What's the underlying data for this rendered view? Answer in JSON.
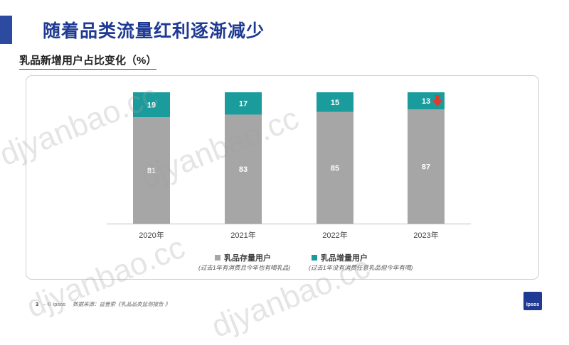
{
  "header": {
    "title": "随着品类流量红利逐渐减少"
  },
  "section": {
    "subtitle": "乳品新增用户占比变化（%）"
  },
  "chart_data": {
    "type": "bar",
    "stacked": true,
    "categories": [
      "2020年",
      "2021年",
      "2022年",
      "2023年"
    ],
    "series": [
      {
        "name": "乳品存量用户",
        "values": [
          81,
          83,
          85,
          87
        ],
        "color": "#A6A6A6"
      },
      {
        "name": "乳品增量用户",
        "values": [
          19,
          17,
          15,
          13
        ],
        "color": "#1A9C9C"
      }
    ],
    "ylim": [
      0,
      100
    ],
    "grid": false,
    "legend_position": "bottom",
    "annotation": {
      "category": "2023年",
      "icon": "down-arrow-icon",
      "color": "#E03A2E"
    }
  },
  "legend": {
    "items": [
      {
        "label": "乳品存量用户",
        "note": "(过去1年有消费且今年也有喝乳品)",
        "color": "#A6A6A6"
      },
      {
        "label": "乳品增量用户",
        "note": "(过去1年没有消费任意乳品但今年有喝)",
        "color": "#1A9C9C"
      }
    ]
  },
  "footer": {
    "page_number": "3",
    "separator": "–",
    "copyright": "© Ipsos",
    "source": "数据来源：益普索《乳品品类监测报告 》"
  },
  "logo": {
    "text": "Ipsos"
  },
  "watermark": {
    "text": "djyanbao.cc"
  }
}
